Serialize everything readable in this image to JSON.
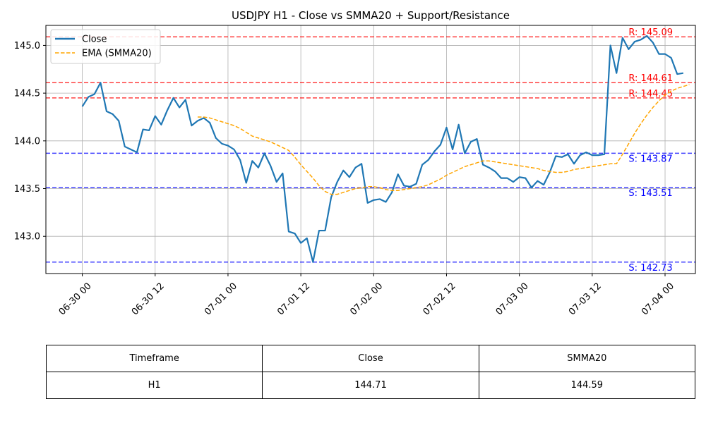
{
  "chart_data": {
    "type": "line",
    "title": "USDJPY H1 - Close vs SMMA20 + Support/Resistance",
    "xlabel": "",
    "ylabel": "",
    "x_range": [
      "2024-06-29 18:00",
      "2024-07-04 05:00"
    ],
    "ylim": [
      142.61,
      145.21
    ],
    "grid": true,
    "legend": {
      "placement": "top-left",
      "entries": [
        "Close",
        "EMA (SMMA20)"
      ]
    },
    "x_ticks": [
      {
        "time": "2024-06-30 00:00",
        "label": "06-30 00"
      },
      {
        "time": "2024-06-30 12:00",
        "label": "06-30 12"
      },
      {
        "time": "2024-07-01 00:00",
        "label": "07-01 00"
      },
      {
        "time": "2024-07-01 12:00",
        "label": "07-01 12"
      },
      {
        "time": "2024-07-02 00:00",
        "label": "07-02 00"
      },
      {
        "time": "2024-07-02 12:00",
        "label": "07-02 12"
      },
      {
        "time": "2024-07-03 00:00",
        "label": "07-03 00"
      },
      {
        "time": "2024-07-03 12:00",
        "label": "07-03 12"
      },
      {
        "time": "2024-07-04 00:00",
        "label": "07-04 00"
      }
    ],
    "y_ticks": [
      {
        "value": 143.0,
        "label": "143.0"
      },
      {
        "value": 143.5,
        "label": "143.5"
      },
      {
        "value": 144.0,
        "label": "144.0"
      },
      {
        "value": 144.5,
        "label": "144.5"
      },
      {
        "value": 145.0,
        "label": "145.0"
      }
    ],
    "series": [
      {
        "name": "Close",
        "color": "#1f77b4",
        "style": "solid",
        "start": "2024-06-30 00:00",
        "step_hours": 1,
        "values": [
          144.36,
          144.46,
          144.49,
          144.61,
          144.31,
          144.28,
          144.21,
          143.94,
          143.91,
          143.88,
          144.12,
          144.11,
          144.26,
          144.17,
          144.32,
          144.45,
          144.35,
          144.43,
          144.16,
          144.21,
          144.24,
          144.19,
          144.03,
          143.97,
          143.95,
          143.91,
          143.8,
          143.56,
          143.79,
          143.72,
          143.87,
          143.74,
          143.57,
          143.66,
          143.05,
          143.03,
          142.93,
          142.98,
          142.73,
          143.06,
          143.06,
          143.41,
          143.57,
          143.69,
          143.62,
          143.72,
          143.76,
          143.35,
          143.38,
          143.39,
          143.36,
          143.46,
          143.65,
          143.53,
          143.52,
          143.55,
          143.75,
          143.8,
          143.89,
          143.96,
          144.14,
          143.91,
          144.17,
          143.87,
          143.99,
          144.02,
          143.75,
          143.72,
          143.68,
          143.61,
          143.61,
          143.57,
          143.62,
          143.61,
          143.51,
          143.58,
          143.54,
          143.67,
          143.84,
          143.83,
          143.86,
          143.76,
          143.85,
          143.88,
          143.85,
          143.85,
          143.86,
          145.0,
          144.71,
          145.08,
          144.96,
          145.04,
          145.06,
          145.1,
          145.03,
          144.91,
          144.91,
          144.87,
          144.7,
          144.71
        ]
      },
      {
        "name": "EMA (SMMA20)",
        "color": "#ffa500",
        "style": "dashed",
        "start": "2024-06-30 19:00",
        "step_hours": 1,
        "values": [
          144.25,
          144.25,
          144.24,
          144.22,
          144.2,
          144.18,
          144.16,
          144.13,
          144.09,
          144.05,
          144.03,
          144.01,
          143.99,
          143.96,
          143.93,
          143.9,
          143.83,
          143.75,
          143.68,
          143.61,
          143.53,
          143.47,
          143.44,
          143.44,
          143.46,
          143.48,
          143.5,
          143.51,
          143.52,
          143.52,
          143.51,
          143.49,
          143.48,
          143.48,
          143.49,
          143.5,
          143.51,
          143.52,
          143.54,
          143.57,
          143.6,
          143.64,
          143.67,
          143.7,
          143.73,
          143.75,
          143.77,
          143.79,
          143.79,
          143.78,
          143.77,
          143.76,
          143.75,
          143.74,
          143.73,
          143.72,
          143.71,
          143.69,
          143.68,
          143.67,
          143.67,
          143.68,
          143.7,
          143.71,
          143.72,
          143.73,
          143.74,
          143.75,
          143.76,
          143.76,
          143.86,
          143.97,
          144.08,
          144.18,
          144.27,
          144.35,
          144.42,
          144.48,
          144.52,
          144.55,
          144.57,
          144.59
        ]
      }
    ],
    "levels": [
      {
        "kind": "resistance",
        "value": 145.09,
        "label": "R: 145.09",
        "color": "#ff0000"
      },
      {
        "kind": "resistance",
        "value": 144.61,
        "label": "R: 144.61",
        "color": "#ff0000"
      },
      {
        "kind": "resistance",
        "value": 144.45,
        "label": "R: 144.45",
        "color": "#ff0000"
      },
      {
        "kind": "support",
        "value": 143.87,
        "label": "S: 143.87",
        "color": "#0000ff"
      },
      {
        "kind": "support",
        "value": 143.51,
        "label": "S: 143.51",
        "color": "#0000ff"
      },
      {
        "kind": "support",
        "value": 142.73,
        "label": "S: 142.73",
        "color": "#0000ff"
      }
    ]
  },
  "table": {
    "headers": [
      "Timeframe",
      "Close",
      "SMMA20"
    ],
    "row": [
      "H1",
      "144.71",
      "144.59"
    ]
  }
}
